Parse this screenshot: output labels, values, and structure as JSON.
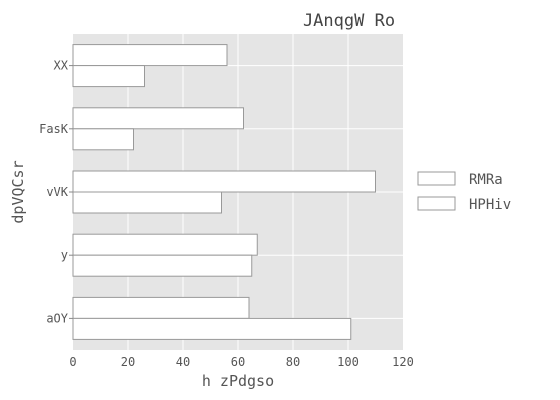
{
  "chart_data": {
    "type": "bar",
    "orientation": "horizontal",
    "title": "JAnqgW Ro",
    "xlabel": "h zPdgso",
    "ylabel": "dpVQCsr",
    "categories": [
      "XX",
      "FasK",
      "vVK",
      "y",
      "aOY"
    ],
    "series": [
      {
        "name": "RMRa",
        "values": [
          56,
          62,
          110,
          67,
          64
        ],
        "color": "#ffffff"
      },
      {
        "name": "HPHiv",
        "values": [
          26,
          22,
          54,
          65,
          101
        ],
        "color": "#ffffff"
      }
    ],
    "xlim": [
      0,
      120
    ],
    "xticks": [
      0,
      20,
      40,
      60,
      80,
      100,
      120
    ],
    "grid": true,
    "legend_position": "right",
    "plot_background": "#e5e5e5",
    "bar_edge_color": "#999999"
  }
}
